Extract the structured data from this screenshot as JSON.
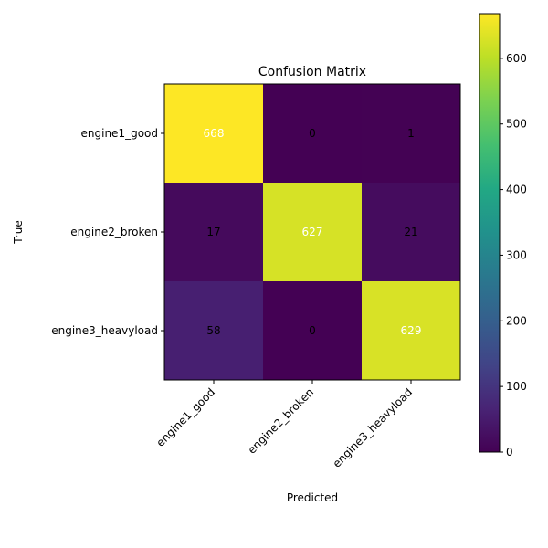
{
  "chart_data": {
    "type": "heatmap",
    "title": "Confusion Matrix",
    "xlabel": "Predicted",
    "ylabel": "True",
    "x_categories": [
      "engine1_good",
      "engine2_broken",
      "engine3_heavyload"
    ],
    "y_categories": [
      "engine1_good",
      "engine2_broken",
      "engine3_heavyload"
    ],
    "values": [
      [
        668,
        0,
        1
      ],
      [
        17,
        627,
        21
      ],
      [
        58,
        0,
        629
      ]
    ],
    "colormap": "viridis",
    "color_range": [
      0,
      668
    ],
    "colorbar_ticks": [
      0,
      100,
      200,
      300,
      400,
      500,
      600
    ],
    "label_colors": {
      "light": "#ffffff",
      "dark": "#000000"
    }
  }
}
